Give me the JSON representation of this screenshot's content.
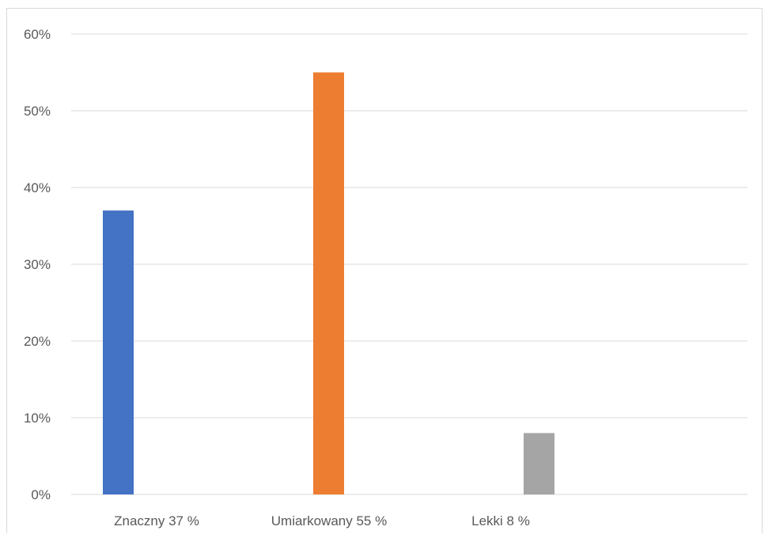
{
  "chart_data": {
    "type": "bar",
    "title": "",
    "xlabel": "",
    "ylabel": "",
    "categories": [
      "Znaczny 37 %",
      "Umiarkowany 55 %",
      "Lekki 8 %"
    ],
    "values": [
      0.37,
      0.55,
      0.08
    ],
    "colors": [
      "#4472c4",
      "#ed7d31",
      "#a5a5a5"
    ],
    "ylim": [
      0,
      0.6
    ],
    "yticks": [
      0,
      0.1,
      0.2,
      0.3,
      0.4,
      0.5,
      0.6
    ],
    "ytick_labels": [
      "0%",
      "10%",
      "20%",
      "30%",
      "40%",
      "50%",
      "60%"
    ],
    "grid": true,
    "gridline_color": "#d9d9d9",
    "legend": "none"
  }
}
